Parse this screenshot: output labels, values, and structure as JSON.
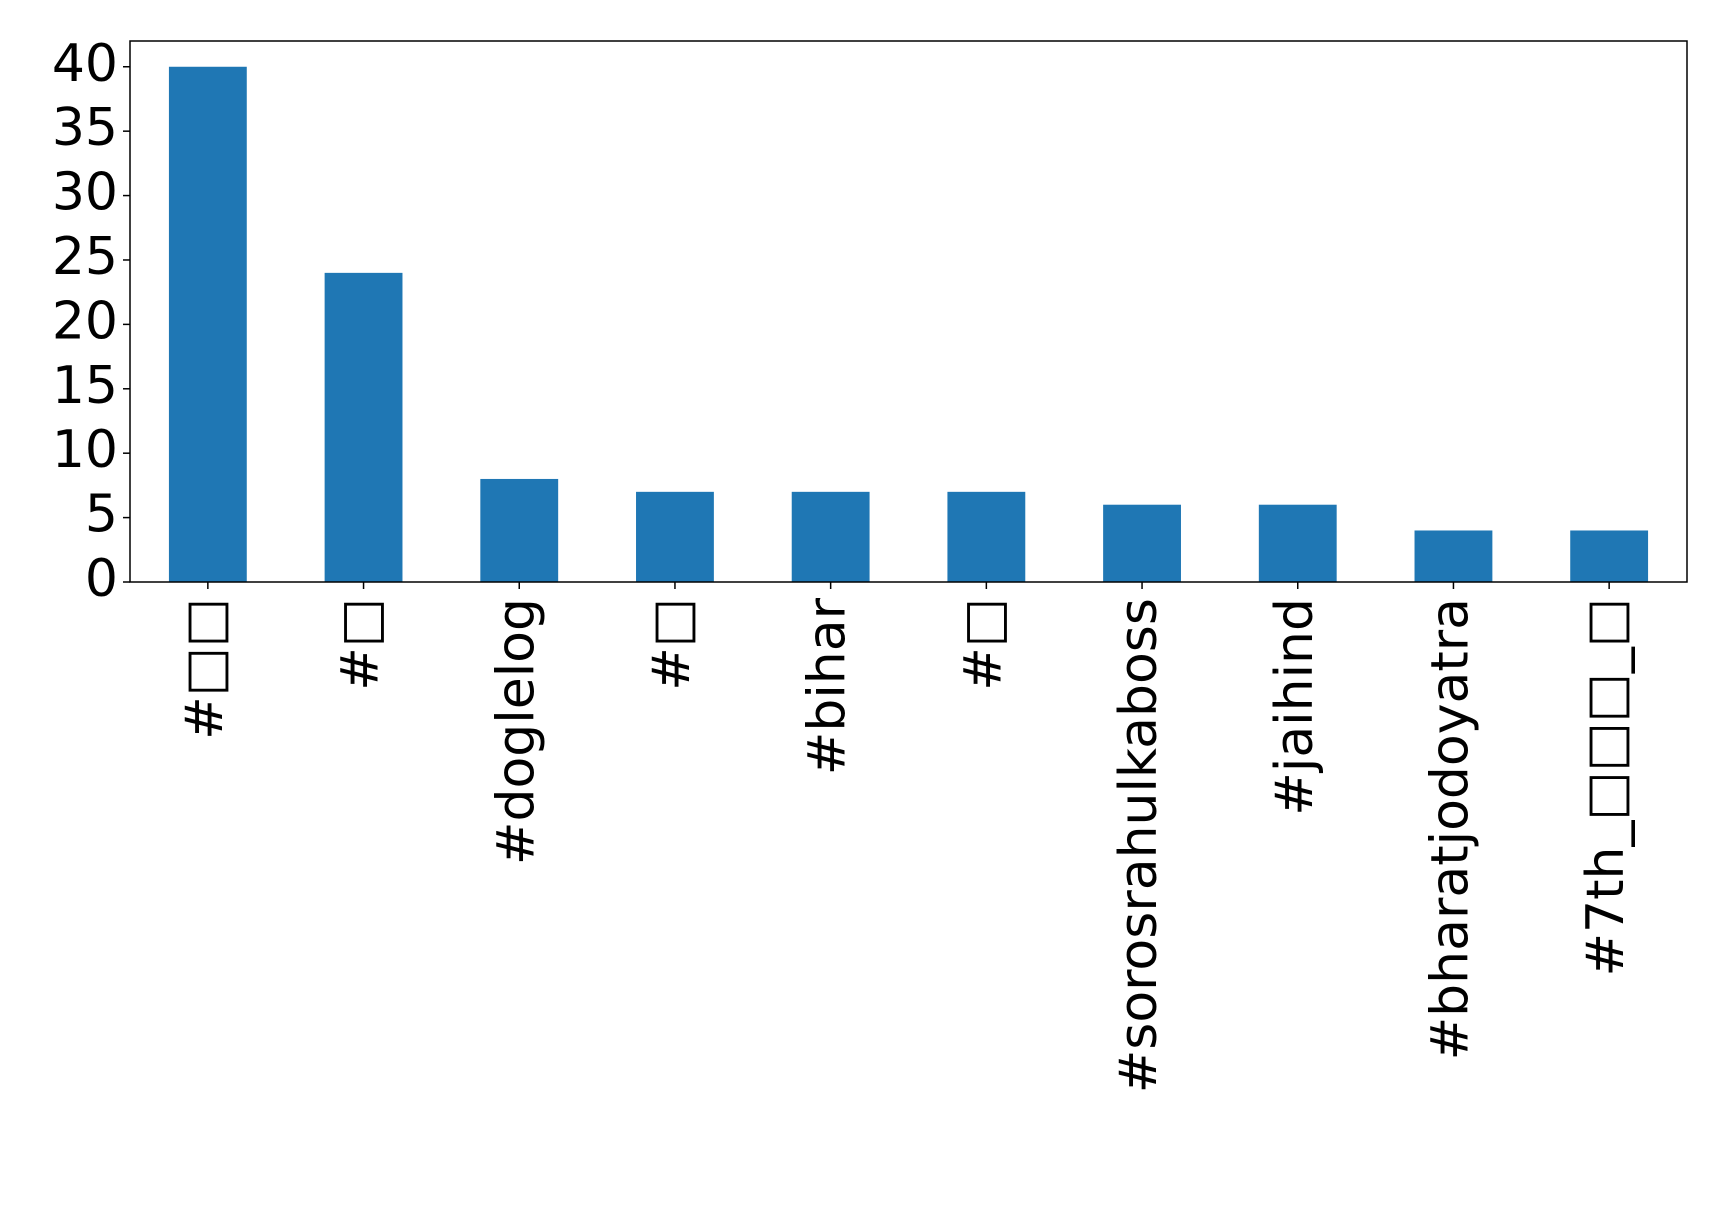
{
  "chart_data": {
    "type": "bar",
    "categories": [
      "#□□",
      "#□",
      "#doglelog",
      "#□",
      "#bihar",
      "#□",
      "#sorosrahulkaboss",
      "#jaihind",
      "#bharatjodoyatra",
      "#7th_□□□_□"
    ],
    "values": [
      40,
      24,
      8,
      7,
      7,
      7,
      6,
      6,
      4,
      4
    ],
    "color": "#1f77b4",
    "ylim": [
      0,
      42
    ],
    "yticks": [
      0,
      5,
      10,
      15,
      20,
      25,
      30,
      35,
      40
    ],
    "grid": false
  }
}
